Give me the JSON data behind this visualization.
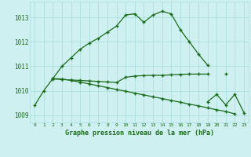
{
  "xlabel": "Graphe pression niveau de la mer (hPa)",
  "x": [
    0,
    1,
    2,
    3,
    4,
    5,
    6,
    7,
    8,
    9,
    10,
    11,
    12,
    13,
    14,
    15,
    16,
    17,
    18,
    19,
    20,
    21,
    22,
    23
  ],
  "line1": [
    1009.4,
    1010.0,
    1010.5,
    1011.0,
    1011.35,
    1011.7,
    1011.95,
    1012.15,
    1012.4,
    1012.65,
    1013.1,
    1013.15,
    1012.8,
    1013.1,
    1013.25,
    1013.15,
    1012.5,
    1012.0,
    1011.5,
    1011.05,
    null,
    null,
    null,
    null
  ],
  "line2": [
    null,
    null,
    1010.5,
    1010.48,
    1010.42,
    1010.35,
    1010.28,
    1010.2,
    1010.13,
    1010.05,
    1009.98,
    1009.9,
    1009.83,
    1009.75,
    1009.68,
    1009.6,
    1009.53,
    1009.45,
    1009.38,
    1009.3,
    1009.22,
    1009.15,
    1009.05,
    null
  ],
  "line3": [
    null,
    null,
    1010.48,
    1010.46,
    1010.44,
    1010.42,
    1010.4,
    1010.38,
    1010.36,
    1010.34,
    1010.55,
    1010.6,
    1010.62,
    1010.63,
    1010.63,
    1010.65,
    1010.67,
    1010.68,
    1010.68,
    1010.68,
    null,
    1010.68,
    null,
    null
  ],
  "line4": [
    null,
    null,
    null,
    null,
    null,
    null,
    null,
    null,
    null,
    null,
    null,
    null,
    null,
    null,
    null,
    null,
    null,
    null,
    null,
    1009.55,
    1009.85,
    1009.42,
    1009.85,
    1009.1
  ],
  "bg_color": "#cff0f0",
  "grid_color": "#aadddd",
  "line_color": "#1a6b1a",
  "ylim_min": 1008.7,
  "ylim_max": 1013.65,
  "yticks": [
    1009,
    1010,
    1011,
    1012,
    1013
  ],
  "figsize": [
    3.2,
    2.0
  ],
  "dpi": 100
}
